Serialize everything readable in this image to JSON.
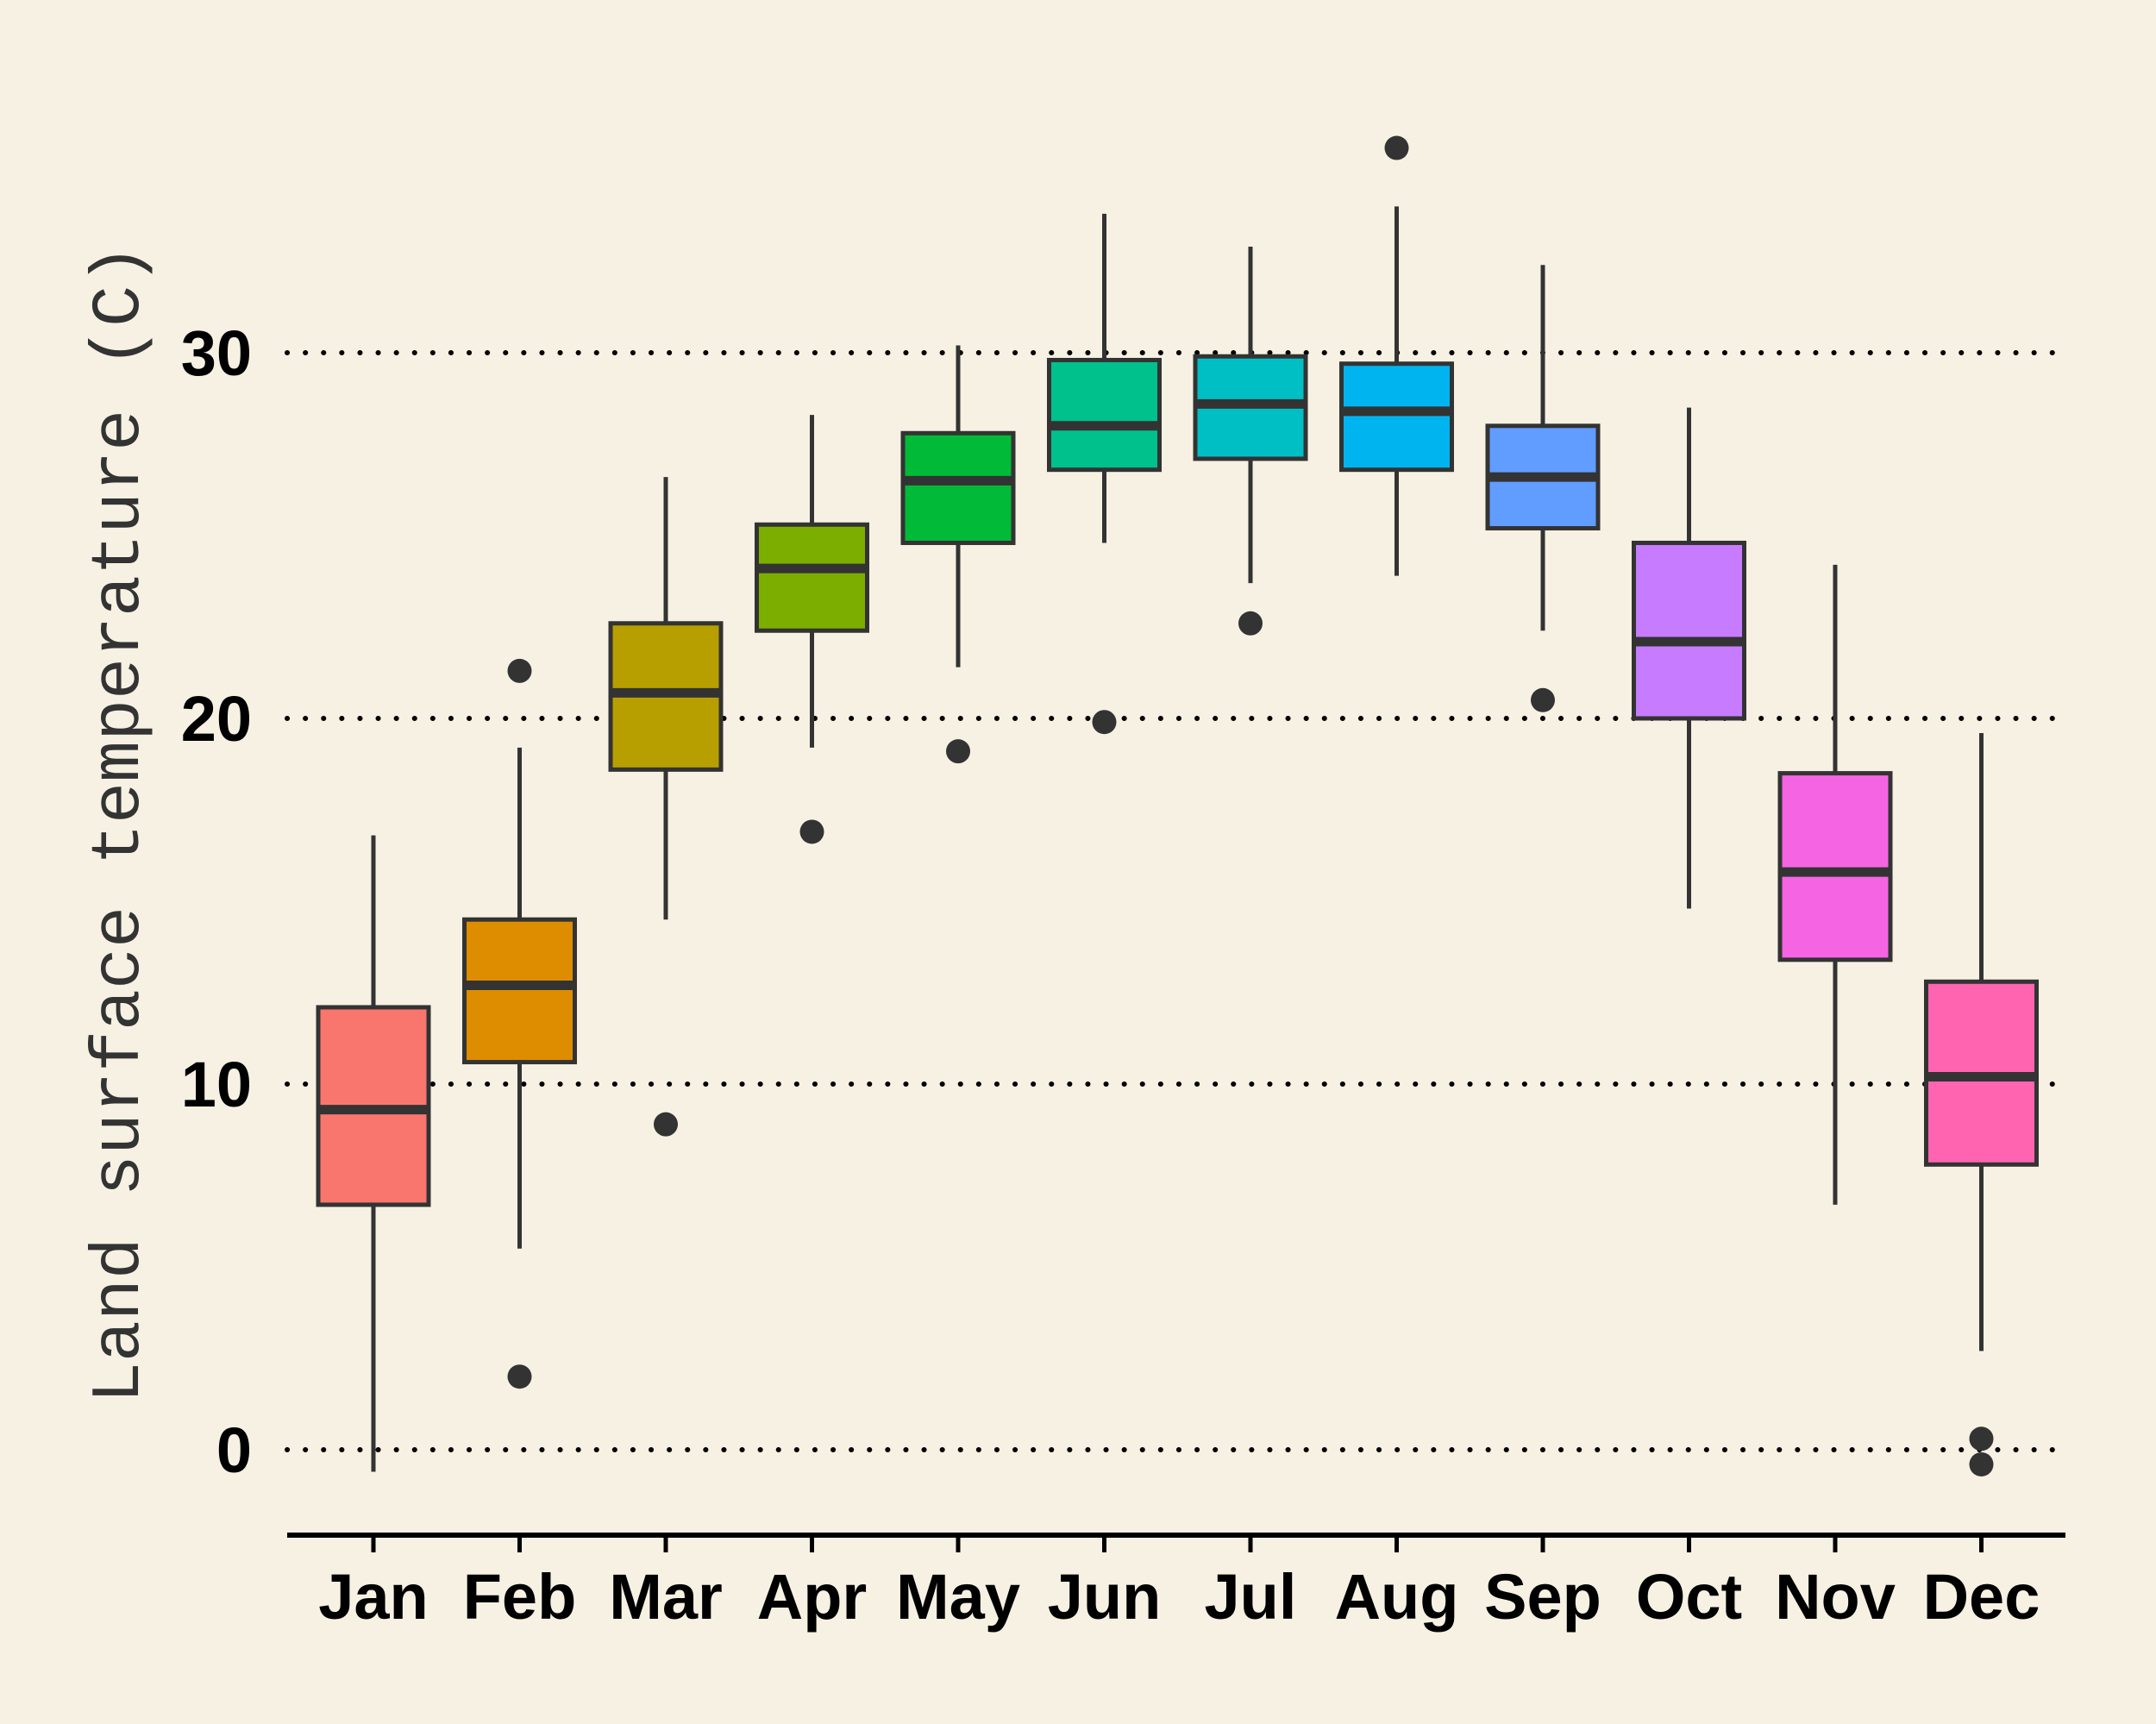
{
  "chart_data": {
    "type": "boxplot",
    "title": "",
    "xlabel": "",
    "ylabel": "Land surface temperature (C)",
    "ylim": [
      -2.3,
      36.5
    ],
    "yticks": [
      0,
      10,
      20,
      30
    ],
    "grid": "horizontal dotted at y ticks",
    "legend": "none",
    "categories": [
      "Jan",
      "Feb",
      "Mar",
      "Apr",
      "May",
      "Jun",
      "Jul",
      "Aug",
      "Sep",
      "Oct",
      "Nov",
      "Dec"
    ],
    "boxes": [
      {
        "label": "Jan",
        "whisker_low": -0.6,
        "q1": 6.7,
        "median": 9.3,
        "q3": 12.1,
        "whisker_high": 16.8,
        "outliers": [],
        "color": "#F8766D"
      },
      {
        "label": "Feb",
        "whisker_low": 5.5,
        "q1": 10.6,
        "median": 12.7,
        "q3": 14.5,
        "whisker_high": 19.2,
        "outliers": [
          2.0,
          21.3
        ],
        "color": "#DE8C00"
      },
      {
        "label": "Mar",
        "whisker_low": 14.5,
        "q1": 18.6,
        "median": 20.7,
        "q3": 22.6,
        "whisker_high": 26.6,
        "outliers": [
          8.9
        ],
        "color": "#B79F00"
      },
      {
        "label": "Apr",
        "whisker_low": 19.2,
        "q1": 22.4,
        "median": 24.1,
        "q3": 25.3,
        "whisker_high": 28.3,
        "outliers": [
          16.9
        ],
        "color": "#7CAE00"
      },
      {
        "label": "May",
        "whisker_low": 21.4,
        "q1": 24.8,
        "median": 26.5,
        "q3": 27.8,
        "whisker_high": 30.2,
        "outliers": [
          19.1
        ],
        "color": "#00BA38"
      },
      {
        "label": "Jun",
        "whisker_low": 24.8,
        "q1": 26.8,
        "median": 28.0,
        "q3": 29.8,
        "whisker_high": 33.8,
        "outliers": [
          19.9
        ],
        "color": "#00C08B"
      },
      {
        "label": "Jul",
        "whisker_low": 23.7,
        "q1": 27.1,
        "median": 28.6,
        "q3": 29.9,
        "whisker_high": 32.9,
        "outliers": [
          22.6
        ],
        "color": "#00BFC4"
      },
      {
        "label": "Aug",
        "whisker_low": 23.9,
        "q1": 26.8,
        "median": 28.4,
        "q3": 29.7,
        "whisker_high": 34.0,
        "outliers": [
          35.6
        ],
        "color": "#00B4F0"
      },
      {
        "label": "Sep",
        "whisker_low": 22.4,
        "q1": 25.2,
        "median": 26.6,
        "q3": 28.0,
        "whisker_high": 32.4,
        "outliers": [
          20.5
        ],
        "color": "#619CFF"
      },
      {
        "label": "Oct",
        "whisker_low": 14.8,
        "q1": 20.0,
        "median": 22.1,
        "q3": 24.8,
        "whisker_high": 28.5,
        "outliers": [],
        "color": "#C77CFF"
      },
      {
        "label": "Nov",
        "whisker_low": 6.7,
        "q1": 13.4,
        "median": 15.8,
        "q3": 18.5,
        "whisker_high": 24.2,
        "outliers": [],
        "color": "#F564E3"
      },
      {
        "label": "Dec",
        "whisker_low": 2.7,
        "q1": 7.8,
        "median": 10.2,
        "q3": 12.8,
        "whisker_high": 19.6,
        "outliers": [
          0.3,
          -0.4
        ],
        "color": "#FF64B0"
      }
    ],
    "colors": {
      "background": "#f7f1e3",
      "box_outline": "#333333",
      "grid": "#000000"
    }
  }
}
